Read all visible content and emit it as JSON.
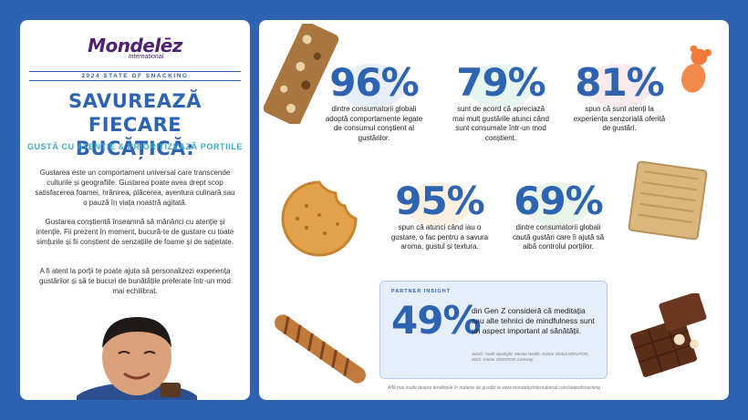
{
  "brand": {
    "name": "Mondelēz",
    "sub": "International"
  },
  "report": "2024 STATE OF SNACKING",
  "headline": {
    "line1": "SAVUREAZĂ FIECARE",
    "line2": "BUCĂȚICĂ:"
  },
  "subheadline": "GUSTĂ CU ATENȚIE & PRIORITIZEAZĂ PORȚIILE",
  "paragraphs": [
    "Gustarea este un comportament universal care transcende culturile și geografiile. Gustarea poate avea drept scop satisfacerea foamei, hrănirea, plăcerea, aventura culinară sau o pauză în viața noastră agitată.",
    "Gustarea conștientă înseamnă să mănânci cu atenție și intenție. Fii prezent în moment, bucură-te de gustare cu toate simțurile și fii conștient de senzațiile de foame și de sațietate.",
    "A fi atent la porții te poate ajuta să personalizezi experiența gustărilor și să te bucuri de bunătățile preferate într-un mod mai echilibrat."
  ],
  "stats": [
    {
      "value": "96%",
      "text": "dintre consumatorii globali adoptă comportamente legate de consumul conștient al gustărilor.",
      "blob": "#dbe6f5"
    },
    {
      "value": "79%",
      "text": "sunt de acord că apreciază mai mult gustările atunci când sunt consumate într-un mod conștient.",
      "blob": "#d8efe8"
    },
    {
      "value": "81%",
      "text": "spun că sunt atenți la experiența senzorială oferită de gustări.",
      "blob": "#f7e1e6"
    },
    {
      "value": "95%",
      "text": "spun că atunci când iau o gustare, o fac pentru a savura aroma, gustul și textura.",
      "blob": "#fbe9cf"
    },
    {
      "value": "69%",
      "text": "dintre consumatorii globali caută gustări care îi ajută să aibă controlul porțiilor.",
      "blob": "#dcefdc"
    }
  ],
  "insight": {
    "label": "PARTNER INSIGHT",
    "value": "49%",
    "text": "din Gen Z consideră că meditația sau alte tehnici de mindfulness sunt un aspect important al sănătății.",
    "source": "Sursă: Youth Spotlight: Mental Health, Kantar Global MONITOR, 2023. Kantar MONITOR Gateway."
  },
  "footer": "Află mai multe despre tendințele în materie de gustări la www.mondelezinternational.com/stateofsnacking",
  "colors": {
    "primary": "#2d63b1",
    "accent": "#3fa9c9",
    "brand": "#4f2170"
  }
}
